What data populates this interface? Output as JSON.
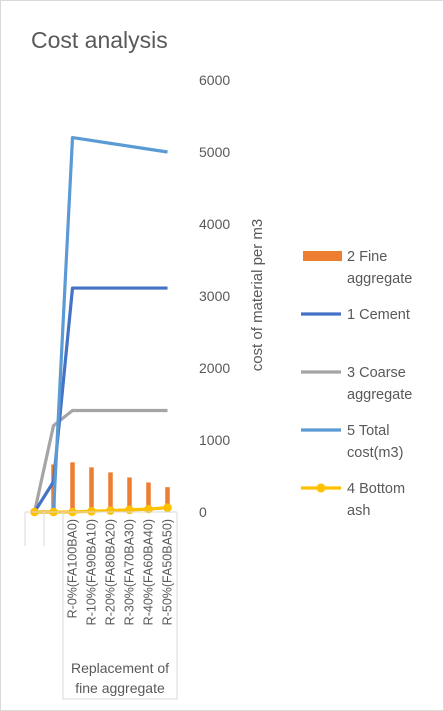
{
  "chart_data": {
    "type": "bar",
    "title": "Cost analysis",
    "xlabel": "",
    "ylabel": "cost of material per m3",
    "ylim": [
      0,
      6000
    ],
    "y_ticks": [
      "0",
      "1000",
      "2000",
      "3000",
      "4000",
      "5000",
      "6000"
    ],
    "y_axis_side": "right",
    "grid": false,
    "legend_position": "right",
    "categories": [
      "",
      "",
      "R-0%(FA100BA0)",
      "R-10%(FA90BA10)",
      "R-20%(FA80BA20)",
      "R-30%(FA70BA30)",
      "R-40%(FA60BA40)",
      "R-50%(FA50BA50)"
    ],
    "category_group_label": "Replacement of fine aggregate",
    "series": [
      {
        "name": "2 Fine aggregate",
        "type": "bar",
        "color": "#ED7D31",
        "values": [
          0,
          660,
          690,
          620,
          550,
          480,
          410,
          345
        ]
      },
      {
        "name": "1 Cement",
        "type": "line",
        "color": "#4472C4",
        "values": [
          0,
          420,
          3110,
          3110,
          3110,
          3110,
          3110,
          3110
        ]
      },
      {
        "name": "3 Coarse aggregate",
        "type": "line",
        "color": "#A5A5A5",
        "values": [
          0,
          1200,
          1410,
          1410,
          1410,
          1410,
          1410,
          1410
        ]
      },
      {
        "name": "5 Total cost(m3)",
        "type": "line",
        "color": "#5B9BD5",
        "values": [
          0,
          0,
          5200,
          5160,
          5120,
          5080,
          5040,
          5000
        ]
      },
      {
        "name": "4 Bottom ash",
        "type": "line-markers",
        "color": "#FFC000",
        "values": [
          0,
          0,
          0,
          10,
          20,
          30,
          40,
          60
        ]
      }
    ]
  }
}
